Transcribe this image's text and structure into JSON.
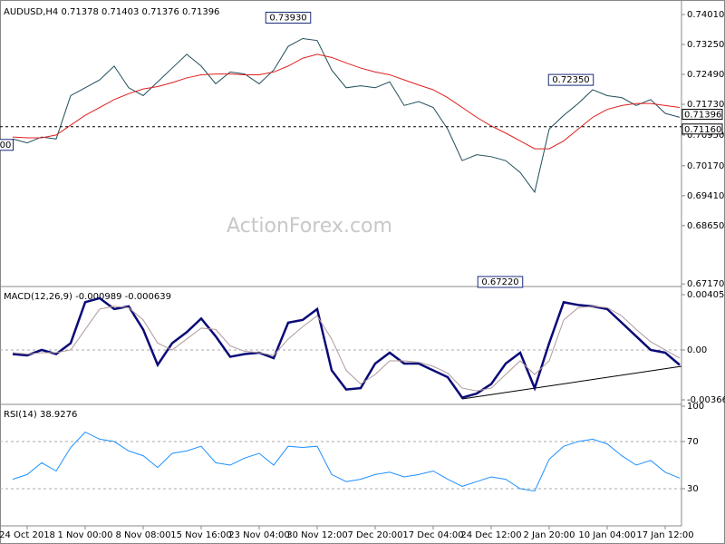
{
  "chart_data": [
    {
      "type": "line",
      "title": "AUDUSD,H4  0.71378 0.71403 0.71376 0.71396",
      "watermark": "ActionForex.com",
      "categories": [
        null,
        "24 Oct 2018",
        null,
        null,
        null,
        "1 Nov 00:00",
        null,
        null,
        null,
        "8 Nov 08:00",
        null,
        null,
        null,
        "15 Nov 16:00",
        null,
        null,
        null,
        "23 Nov 04:00",
        null,
        null,
        null,
        "30 Nov 12:00",
        null,
        null,
        null,
        "7 Dec 20:00",
        null,
        null,
        null,
        "17 Dec 04:00",
        null,
        null,
        null,
        "24 Dec 12:00",
        null,
        null,
        null,
        "2 Jan 20:00",
        null,
        null,
        null,
        "10 Jan 04:00",
        null,
        null,
        null,
        "17 Jan 12:00",
        null
      ],
      "series": [
        {
          "name": "AUDUSD",
          "color": "#1f4e5a",
          "values": [
            0.7085,
            0.7075,
            0.709,
            0.7085,
            0.7195,
            0.7215,
            0.7235,
            0.727,
            0.7215,
            0.7195,
            0.723,
            0.7265,
            0.73,
            0.727,
            0.7225,
            0.7255,
            0.725,
            0.7225,
            0.726,
            0.732,
            0.734,
            0.7335,
            0.726,
            0.7215,
            0.722,
            0.7215,
            0.723,
            0.717,
            0.718,
            0.7165,
            0.711,
            0.703,
            0.7045,
            0.704,
            0.703,
            0.7,
            0.695,
            0.711,
            0.7145,
            0.7175,
            0.721,
            0.7195,
            0.719,
            0.717,
            0.7185,
            0.715,
            0.714
          ]
        },
        {
          "name": "MA",
          "color": "#e0201f",
          "values": [
            0.709,
            0.7088,
            0.7088,
            0.7095,
            0.712,
            0.7145,
            0.7165,
            0.7185,
            0.72,
            0.7212,
            0.7218,
            0.7228,
            0.724,
            0.7248,
            0.725,
            0.725,
            0.7248,
            0.7248,
            0.7255,
            0.727,
            0.729,
            0.73,
            0.7292,
            0.7278,
            0.7265,
            0.7255,
            0.7248,
            0.7235,
            0.7222,
            0.721,
            0.719,
            0.7165,
            0.714,
            0.7118,
            0.71,
            0.708,
            0.706,
            0.706,
            0.708,
            0.711,
            0.714,
            0.716,
            0.717,
            0.7175,
            0.7175,
            0.717,
            0.7165
          ]
        }
      ],
      "annotations": [
        {
          "value": 0.7393,
          "label": "0.73930"
        },
        {
          "value": 0.7235,
          "label": "0.72350"
        },
        {
          "value": 0.6722,
          "label": "0.67220"
        },
        {
          "value": 0.707,
          "label": "00"
        }
      ],
      "markers": [
        {
          "value": 0.71396,
          "label": "0.71396",
          "color": "#000"
        },
        {
          "value": 0.7116,
          "label": "0.71160",
          "color": "#000"
        }
      ],
      "ylim": [
        0.6715,
        0.74286
      ],
      "yticks": [
        {
          "value": 0.7401,
          "label": "0.74010"
        },
        {
          "value": 0.7325,
          "label": "0.73250"
        },
        {
          "value": 0.7249,
          "label": "0.72490"
        },
        {
          "value": 0.7173,
          "label": "0.71730"
        },
        {
          "value": 0.7095,
          "label": "0.70950"
        },
        {
          "value": 0.7017,
          "label": "0.70170"
        },
        {
          "value": 0.6941,
          "label": "0.69410"
        },
        {
          "value": 0.6865,
          "label": "0.68650"
        },
        {
          "value": 0.6717,
          "label": "0.67170"
        }
      ]
    },
    {
      "type": "line",
      "title": "MACD(12,26,9) -0.000989 -0.000639",
      "series": [
        {
          "name": "MACD",
          "color": "#0a0a78",
          "values": [
            -0.0003,
            -0.0004,
            0,
            -0.0003,
            0.0005,
            0.0035,
            0.0038,
            0.003,
            0.0032,
            0.0015,
            -0.0011,
            0.0005,
            0.0013,
            0.0023,
            0.001,
            -0.0005,
            -0.0003,
            -0.0002,
            -0.0006,
            0.002,
            0.0022,
            0.003,
            -0.0015,
            -0.0029,
            -0.0028,
            -0.001,
            -0.0002,
            -0.001,
            -0.001,
            -0.0015,
            -0.002,
            -0.0035,
            -0.0032,
            -0.0025,
            -0.001,
            -0.0002,
            -0.0028,
            0.0005,
            0.0035,
            0.0033,
            0.0032,
            0.003,
            0.002,
            0.001,
            0,
            -0.0002,
            -0.0011
          ]
        },
        {
          "name": "Signal",
          "color": "#b09a9a",
          "values": [
            -0.0002,
            -0.0003,
            -0.0002,
            -0.0002,
            0,
            0.0015,
            0.003,
            0.0032,
            0.0031,
            0.0022,
            0.0005,
            0,
            0.0008,
            0.0016,
            0.0015,
            0.0003,
            -0.0001,
            -0.0002,
            -0.0004,
            0.0008,
            0.0017,
            0.0025,
            0.0008,
            -0.0015,
            -0.0025,
            -0.0018,
            -0.0008,
            -0.0008,
            -0.0009,
            -0.0012,
            -0.0017,
            -0.0028,
            -0.003,
            -0.0028,
            -0.0018,
            -0.0008,
            -0.0018,
            -0.0008,
            0.0022,
            0.0031,
            0.0032,
            0.0031,
            0.0025,
            0.0015,
            0.0006,
            0,
            -0.0006
          ]
        }
      ],
      "ylim": [
        -0.00386,
        0.00452
      ],
      "yticks": [
        {
          "value": 0.004055,
          "label": "0.004055"
        },
        {
          "value": 0,
          "label": "0.00"
        },
        {
          "value": -0.003662,
          "label": "-0.003662"
        }
      ]
    },
    {
      "type": "line",
      "title": "RSI(14) 38.9276",
      "series": [
        {
          "name": "RSI",
          "color": "#1e90ff",
          "values": [
            38,
            42,
            52,
            45,
            65,
            78,
            72,
            70,
            62,
            58,
            48,
            60,
            62,
            66,
            52,
            50,
            56,
            60,
            50,
            66,
            65,
            66,
            42,
            36,
            38,
            42,
            44,
            40,
            42,
            45,
            38,
            32,
            36,
            40,
            38,
            30,
            28,
            55,
            66,
            70,
            72,
            68,
            58,
            50,
            54,
            44,
            39
          ]
        }
      ],
      "ylim": [
        0,
        100
      ],
      "yticks": [
        100,
        70,
        30
      ]
    }
  ]
}
